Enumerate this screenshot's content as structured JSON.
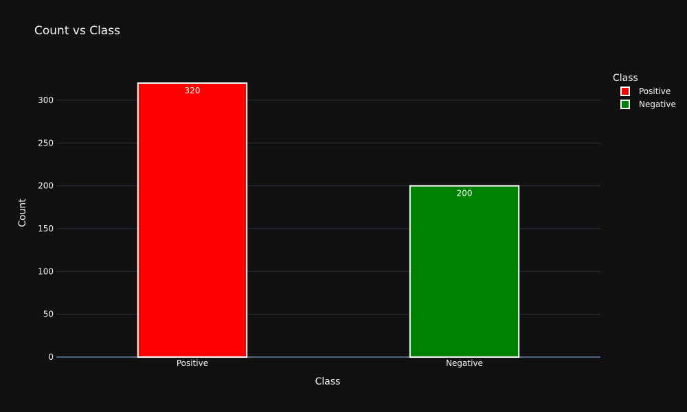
{
  "chart_data": {
    "type": "bar",
    "title": "Count vs Class",
    "xlabel": "Class",
    "ylabel": "Count",
    "categories": [
      "Positive",
      "Negative"
    ],
    "values": [
      320,
      200
    ],
    "data_labels": [
      "320",
      "200"
    ],
    "bar_colors": [
      "#ff0000",
      "#008000"
    ],
    "bar_outline_color": "#ffffff",
    "ylim": [
      0,
      336.84
    ],
    "yticks": [
      0,
      50,
      100,
      150,
      200,
      250,
      300
    ],
    "grid": true,
    "legend": {
      "title": "Class",
      "placement": "top-right",
      "entries": [
        {
          "name": "Positive",
          "color": "#ff0000"
        },
        {
          "name": "Negative",
          "color": "#008000"
        }
      ]
    },
    "background_color": "#111111",
    "text_color": "#f2f5fa",
    "grid_color": "#283442"
  }
}
